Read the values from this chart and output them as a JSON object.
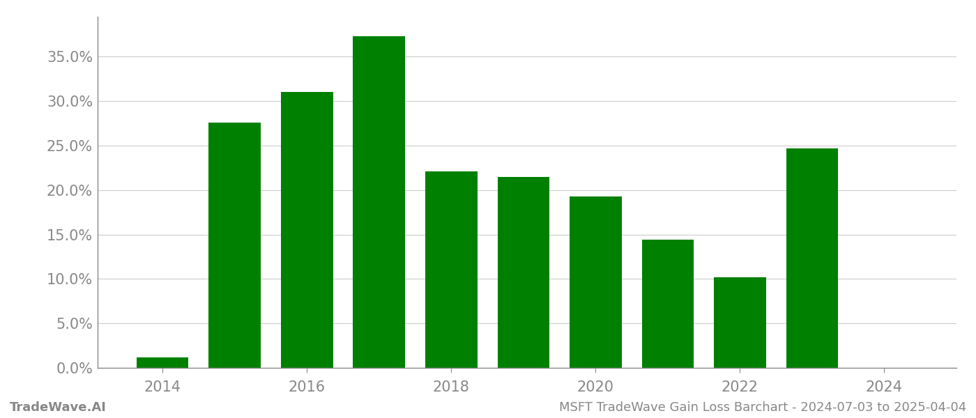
{
  "years": [
    2014,
    2015,
    2016,
    2017,
    2018,
    2019,
    2020,
    2021,
    2022,
    2023,
    2024
  ],
  "values": [
    0.012,
    0.276,
    0.31,
    0.373,
    0.221,
    0.215,
    0.193,
    0.144,
    0.102,
    0.247,
    0.0
  ],
  "bar_color": "#008000",
  "background_color": "#ffffff",
  "grid_color": "#cccccc",
  "axis_color": "#888888",
  "tick_color": "#888888",
  "ylim": [
    0,
    0.395
  ],
  "yticks": [
    0.0,
    0.05,
    0.1,
    0.15,
    0.2,
    0.25,
    0.3,
    0.35
  ],
  "xticks": [
    2014,
    2016,
    2018,
    2020,
    2022,
    2024
  ],
  "xlim": [
    2013.1,
    2025.0
  ],
  "footer_left": "TradeWave.AI",
  "footer_right": "MSFT TradeWave Gain Loss Barchart - 2024-07-03 to 2025-04-04",
  "footer_color": "#888888",
  "footer_fontsize": 13,
  "tick_fontsize": 15,
  "bar_width": 0.72
}
